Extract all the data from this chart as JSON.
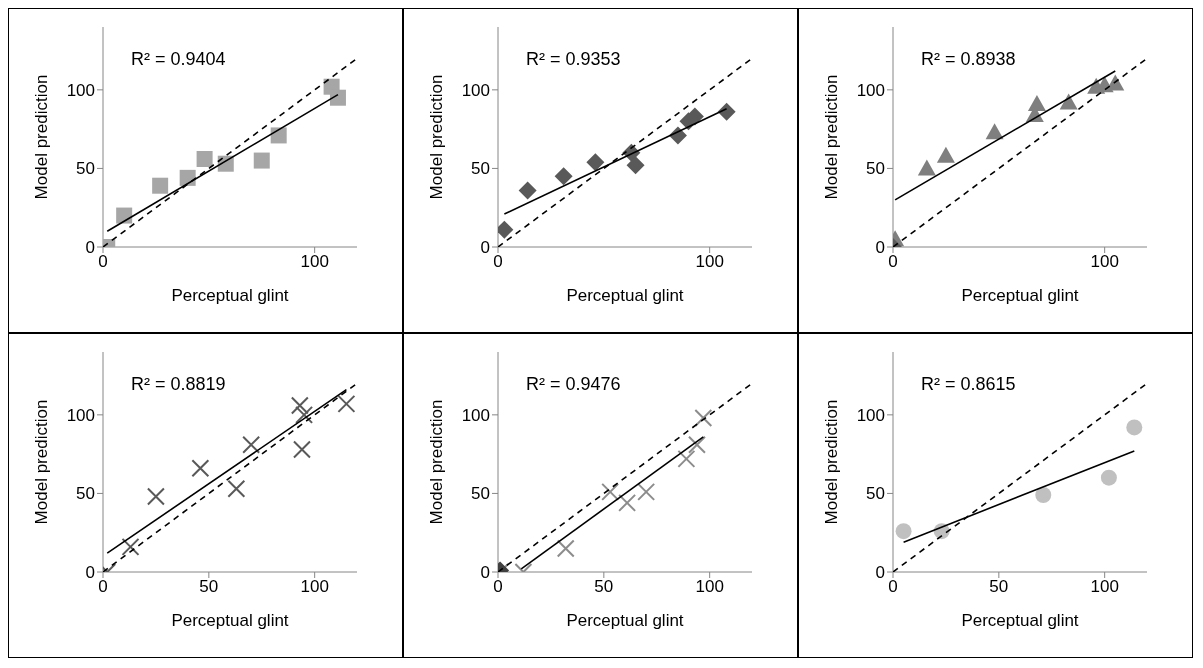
{
  "chart_data": [
    {
      "type": "scatter",
      "xlabel": "Perceptual glint",
      "ylabel": "Model prediction",
      "xlim": [
        0,
        120
      ],
      "ylim": [
        0,
        140
      ],
      "xticks": [
        0,
        100
      ],
      "yticks": [
        0,
        50,
        100
      ],
      "annotations": [
        "R² = 0.9404"
      ],
      "series": [
        {
          "marker": "square",
          "color": "#a6a6a6",
          "x": [
            2,
            10,
            27,
            40,
            48,
            58,
            75,
            83,
            108,
            111
          ],
          "values": [
            0,
            20,
            39,
            44,
            56,
            53,
            55,
            71,
            102,
            95
          ]
        },
        {
          "type": "line",
          "color": "#000000",
          "line_style": "solid",
          "x": [
            2,
            111
          ],
          "values": [
            10,
            97
          ]
        },
        {
          "type": "line",
          "color": "#000000",
          "line_style": "dashed",
          "x": [
            0,
            120
          ],
          "values": [
            0,
            120
          ]
        }
      ]
    },
    {
      "type": "scatter",
      "xlabel": "Perceptual glint",
      "ylabel": "Model prediction",
      "xlim": [
        0,
        120
      ],
      "ylim": [
        0,
        140
      ],
      "xticks": [
        0,
        100
      ],
      "yticks": [
        0,
        50,
        100
      ],
      "annotations": [
        "R² = 0.9353"
      ],
      "series": [
        {
          "marker": "diamond",
          "color": "#595959",
          "x": [
            3,
            14,
            31,
            46,
            63,
            65,
            85,
            90,
            93,
            108
          ],
          "values": [
            11,
            36,
            45,
            54,
            60,
            52,
            71,
            80,
            83,
            86
          ]
        },
        {
          "type": "line",
          "color": "#000000",
          "line_style": "solid",
          "x": [
            3,
            108
          ],
          "values": [
            21,
            88
          ]
        },
        {
          "type": "line",
          "color": "#000000",
          "line_style": "dashed",
          "x": [
            0,
            120
          ],
          "values": [
            0,
            120
          ]
        }
      ]
    },
    {
      "type": "scatter",
      "xlabel": "Perceptual glint",
      "ylabel": "Model prediction",
      "xlim": [
        0,
        120
      ],
      "ylim": [
        0,
        140
      ],
      "xticks": [
        0,
        100
      ],
      "yticks": [
        0,
        50,
        100
      ],
      "annotations": [
        "R² = 0.8938"
      ],
      "series": [
        {
          "marker": "triangle",
          "color": "#7f7f7f",
          "x": [
            1,
            16,
            25,
            48,
            67,
            68,
            83,
            96,
            100,
            105
          ],
          "values": [
            5,
            50,
            58,
            73,
            84,
            91,
            92,
            102,
            103,
            104
          ]
        },
        {
          "marker": "diamond",
          "color": "#595959",
          "x": [
            0
          ],
          "values": [
            0
          ]
        },
        {
          "type": "line",
          "color": "#000000",
          "line_style": "solid",
          "x": [
            1,
            105
          ],
          "values": [
            30,
            112
          ]
        },
        {
          "type": "line",
          "color": "#000000",
          "line_style": "dashed",
          "x": [
            0,
            120
          ],
          "values": [
            0,
            120
          ]
        }
      ]
    },
    {
      "type": "scatter",
      "xlabel": "Perceptual glint",
      "ylabel": "Model prediction",
      "xlim": [
        0,
        120
      ],
      "ylim": [
        0,
        140
      ],
      "xticks": [
        0,
        50,
        100
      ],
      "yticks": [
        0,
        50,
        100
      ],
      "annotations": [
        "R² = 0.8819"
      ],
      "series": [
        {
          "marker": "cross",
          "color": "#595959",
          "x": [
            2,
            13,
            25,
            46,
            63,
            70,
            93,
            95,
            94,
            115
          ],
          "values": [
            0,
            16,
            48,
            66,
            53,
            81,
            106,
            100,
            78,
            107
          ]
        },
        {
          "type": "line",
          "color": "#000000",
          "line_style": "solid",
          "x": [
            2,
            115
          ],
          "values": [
            12,
            116
          ]
        },
        {
          "type": "line",
          "color": "#000000",
          "line_style": "dashed",
          "x": [
            0,
            120
          ],
          "values": [
            0,
            120
          ]
        }
      ]
    },
    {
      "type": "scatter",
      "xlabel": "Perceptual glint",
      "ylabel": "Model prediction",
      "xlim": [
        0,
        120
      ],
      "ylim": [
        0,
        140
      ],
      "xticks": [
        0,
        50,
        100
      ],
      "yticks": [
        0,
        50,
        100
      ],
      "annotations": [
        "R² = 0.9476"
      ],
      "series": [
        {
          "marker": "cross",
          "color": "#8c8c8c",
          "x": [
            1,
            12,
            32,
            53,
            61,
            70,
            89,
            94,
            97
          ],
          "values": [
            0,
            0,
            15,
            51,
            44,
            51,
            72,
            81,
            98
          ]
        },
        {
          "marker": "diamond",
          "color": "#404040",
          "x": [
            1
          ],
          "values": [
            1
          ]
        },
        {
          "type": "line",
          "color": "#000000",
          "line_style": "solid",
          "x": [
            11,
            97
          ],
          "values": [
            2,
            86
          ]
        },
        {
          "type": "line",
          "color": "#000000",
          "line_style": "dashed",
          "x": [
            0,
            120
          ],
          "values": [
            0,
            120
          ]
        }
      ]
    },
    {
      "type": "scatter",
      "xlabel": "Perceptual glint",
      "ylabel": "Model prediction",
      "xlim": [
        0,
        120
      ],
      "ylim": [
        0,
        140
      ],
      "xticks": [
        0,
        50,
        100
      ],
      "yticks": [
        0,
        50,
        100
      ],
      "annotations": [
        "R² = 0.8615"
      ],
      "series": [
        {
          "marker": "circle",
          "color": "#c0c0c0",
          "x": [
            5,
            23,
            71,
            102,
            114
          ],
          "values": [
            26,
            26,
            49,
            60,
            92
          ]
        },
        {
          "type": "line",
          "color": "#000000",
          "line_style": "solid",
          "x": [
            5,
            114
          ],
          "values": [
            19,
            77
          ]
        },
        {
          "type": "line",
          "color": "#000000",
          "line_style": "dashed",
          "x": [
            0,
            120
          ],
          "values": [
            0,
            120
          ]
        }
      ]
    }
  ]
}
